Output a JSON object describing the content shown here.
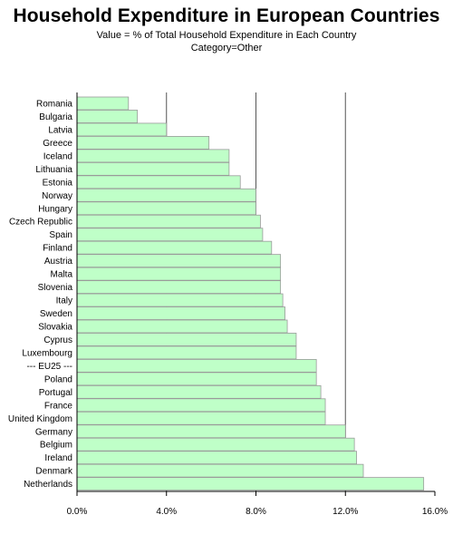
{
  "title": "Household Expenditure in European Countries",
  "subtitle_lines": [
    "Value = % of Total Household Expenditure in Each Country",
    "Category=Other"
  ],
  "colors": {
    "bar_fill": "#bfffc8",
    "bar_stroke": "#9a9a9a",
    "axis": "#000000",
    "ref_line": "#555555"
  },
  "chart_data": {
    "type": "bar",
    "orientation": "horizontal",
    "title": "Household Expenditure in European Countries",
    "subtitle": "Value = % of Total Household Expenditure in Each Country",
    "categories": [
      "Romania",
      "Bulgaria",
      "Latvia",
      "Greece",
      "Iceland",
      "Lithuania",
      "Estonia",
      "Norway",
      "Hungary",
      "Czech Republic",
      "Spain",
      "Finland",
      "Austria",
      "Malta",
      "Slovenia",
      "Italy",
      "Sweden",
      "Slovakia",
      "Cyprus",
      "Luxembourg",
      "--- EU25 ---",
      "Poland",
      "Portugal",
      "France",
      "United Kingdom",
      "Germany",
      "Belgium",
      "Ireland",
      "Denmark",
      "Netherlands"
    ],
    "values": [
      2.3,
      2.7,
      4.0,
      5.9,
      6.8,
      6.8,
      7.3,
      8.0,
      8.0,
      8.2,
      8.3,
      8.7,
      9.1,
      9.1,
      9.1,
      9.2,
      9.3,
      9.4,
      9.8,
      9.8,
      10.7,
      10.7,
      10.9,
      11.1,
      11.1,
      12.0,
      12.4,
      12.5,
      12.8,
      15.5
    ],
    "xlim": [
      0,
      16
    ],
    "xticks": [
      0,
      4,
      8,
      12,
      16
    ],
    "xtick_labels": [
      "0.0%",
      "4.0%",
      "8.0%",
      "12.0%",
      "16.0%"
    ],
    "reference_lines": [
      4,
      8,
      12
    ],
    "grid": false
  }
}
